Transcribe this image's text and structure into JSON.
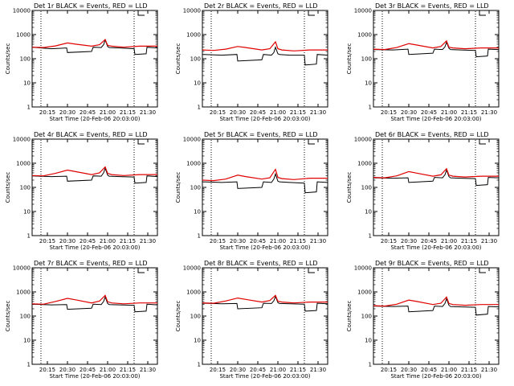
{
  "colors": {
    "events": "#000000",
    "lld": "#e00000",
    "background": "#ffffff"
  },
  "chart_data": [
    {
      "type": "line",
      "title": "Det 1r BLACK = Events, RED = LLD",
      "xlabel": "Start Time (20-Feb-06 20:03:00)",
      "ylabel": "Counts/sec",
      "ylim": [
        1,
        10000
      ],
      "yscale": "log",
      "xlim": [
        20.06,
        21.62
      ],
      "x_ticks": [
        "20:15",
        "20:30",
        "20:45",
        "21:00",
        "21:15",
        "21:30"
      ],
      "y_ticks": [
        "1",
        "10",
        "100",
        "1000",
        "10000"
      ],
      "vlines": [
        20.17,
        21.33
      ],
      "series": [
        {
          "name": "Events",
          "x": [
            20.06,
            20.3,
            20.49,
            20.5,
            20.8,
            20.82,
            20.92,
            20.95,
            20.97,
            21.0,
            21.02,
            21.15,
            21.33,
            21.34,
            21.48,
            21.49,
            21.62
          ],
          "y": [
            300,
            260,
            280,
            180,
            200,
            300,
            290,
            380,
            600,
            320,
            290,
            280,
            260,
            150,
            160,
            300,
            280
          ]
        },
        {
          "name": "LLD",
          "x": [
            20.06,
            20.2,
            20.35,
            20.5,
            20.6,
            20.8,
            20.9,
            20.97,
            21.0,
            21.05,
            21.2,
            21.4,
            21.62
          ],
          "y": [
            300,
            290,
            340,
            450,
            400,
            330,
            380,
            620,
            360,
            330,
            300,
            330,
            330
          ]
        }
      ]
    },
    {
      "type": "line",
      "title": "Det 2r BLACK = Events, RED = LLD",
      "xlabel": "Start Time (20-Feb-06 20:03:00)",
      "ylabel": "Counts/sec",
      "ylim": [
        1,
        10000
      ],
      "yscale": "log",
      "xlim": [
        20.06,
        21.62
      ],
      "x_ticks": [
        "20:15",
        "20:30",
        "20:45",
        "21:00",
        "21:15",
        "21:30"
      ],
      "y_ticks": [
        "1",
        "10",
        "100",
        "1000",
        "10000"
      ],
      "vlines": [
        20.17,
        21.33
      ],
      "series": [
        {
          "name": "Events",
          "x": [
            20.06,
            20.3,
            20.49,
            20.5,
            20.8,
            20.82,
            20.92,
            20.95,
            20.97,
            21.0,
            21.02,
            21.15,
            21.33,
            21.34,
            21.48,
            21.49,
            21.62
          ],
          "y": [
            150,
            140,
            150,
            80,
            90,
            150,
            140,
            180,
            300,
            160,
            150,
            140,
            140,
            55,
            60,
            150,
            140
          ]
        },
        {
          "name": "LLD",
          "x": [
            20.06,
            20.2,
            20.35,
            20.5,
            20.6,
            20.8,
            20.9,
            20.97,
            21.0,
            21.05,
            21.2,
            21.4,
            21.62
          ],
          "y": [
            230,
            220,
            250,
            320,
            290,
            230,
            260,
            500,
            260,
            230,
            210,
            230,
            230
          ]
        }
      ]
    },
    {
      "type": "line",
      "title": "Det 3r BLACK = Events, RED = LLD",
      "xlabel": "Start Time (20-Feb-06 20:03:00)",
      "ylabel": "Counts/sec",
      "ylim": [
        1,
        10000
      ],
      "yscale": "log",
      "xlim": [
        20.06,
        21.62
      ],
      "x_ticks": [
        "20:15",
        "20:30",
        "20:45",
        "21:00",
        "21:15",
        "21:30"
      ],
      "y_ticks": [
        "1",
        "10",
        "100",
        "1000",
        "10000"
      ],
      "vlines": [
        20.17,
        21.33
      ],
      "series": [
        {
          "name": "Events",
          "x": [
            20.06,
            20.3,
            20.49,
            20.5,
            20.8,
            20.82,
            20.92,
            20.95,
            20.97,
            21.0,
            21.02,
            21.15,
            21.33,
            21.34,
            21.48,
            21.49,
            21.62
          ],
          "y": [
            240,
            230,
            250,
            150,
            170,
            250,
            240,
            310,
            480,
            270,
            240,
            230,
            220,
            120,
            130,
            250,
            240
          ]
        },
        {
          "name": "LLD",
          "x": [
            20.06,
            20.2,
            20.35,
            20.5,
            20.6,
            20.8,
            20.9,
            20.97,
            21.0,
            21.05,
            21.2,
            21.4,
            21.62
          ],
          "y": [
            250,
            240,
            290,
            420,
            370,
            280,
            320,
            550,
            300,
            280,
            260,
            280,
            280
          ]
        }
      ]
    },
    {
      "type": "line",
      "title": "Det 4r BLACK = Events, RED = LLD",
      "xlabel": "Start Time (20-Feb-06 20:03:00)",
      "ylabel": "Counts/sec",
      "ylim": [
        1,
        10000
      ],
      "yscale": "log",
      "xlim": [
        20.06,
        21.62
      ],
      "x_ticks": [
        "20:15",
        "20:30",
        "20:45",
        "21:00",
        "21:15",
        "21:30"
      ],
      "y_ticks": [
        "1",
        "10",
        "100",
        "1000",
        "10000"
      ],
      "vlines": [
        20.17,
        21.33
      ],
      "series": [
        {
          "name": "Events",
          "x": [
            20.06,
            20.3,
            20.49,
            20.5,
            20.8,
            20.82,
            20.92,
            20.95,
            20.97,
            21.0,
            21.02,
            21.15,
            21.33,
            21.34,
            21.48,
            21.49,
            21.62
          ],
          "y": [
            300,
            280,
            290,
            180,
            200,
            300,
            290,
            400,
            620,
            320,
            290,
            280,
            270,
            150,
            160,
            300,
            280
          ]
        },
        {
          "name": "LLD",
          "x": [
            20.06,
            20.2,
            20.35,
            20.5,
            20.6,
            20.8,
            20.9,
            20.97,
            21.0,
            21.05,
            21.2,
            21.4,
            21.62
          ],
          "y": [
            310,
            300,
            380,
            520,
            450,
            340,
            400,
            700,
            380,
            340,
            310,
            340,
            340
          ]
        }
      ]
    },
    {
      "type": "line",
      "title": "Det 5r BLACK = Events, RED = LLD",
      "xlabel": "Start Time (20-Feb-06 20:03:00)",
      "ylabel": "Counts/sec",
      "ylim": [
        1,
        10000
      ],
      "yscale": "log",
      "xlim": [
        20.06,
        21.62
      ],
      "x_ticks": [
        "20:15",
        "20:30",
        "20:45",
        "21:00",
        "21:15",
        "21:30"
      ],
      "y_ticks": [
        "1",
        "10",
        "100",
        "1000",
        "10000"
      ],
      "vlines": [
        20.17,
        21.33
      ],
      "series": [
        {
          "name": "Events",
          "x": [
            20.06,
            20.3,
            20.49,
            20.5,
            20.8,
            20.82,
            20.92,
            20.95,
            20.97,
            21.0,
            21.02,
            21.15,
            21.33,
            21.34,
            21.48,
            21.49,
            21.62
          ],
          "y": [
            170,
            160,
            170,
            90,
            100,
            170,
            160,
            220,
            360,
            180,
            170,
            160,
            150,
            60,
            65,
            170,
            160
          ]
        },
        {
          "name": "LLD",
          "x": [
            20.06,
            20.2,
            20.35,
            20.5,
            20.6,
            20.8,
            20.9,
            20.97,
            21.0,
            21.05,
            21.2,
            21.4,
            21.62
          ],
          "y": [
            200,
            190,
            220,
            320,
            280,
            220,
            250,
            560,
            260,
            230,
            210,
            240,
            240
          ]
        }
      ]
    },
    {
      "type": "line",
      "title": "Det 6r BLACK = Events, RED = LLD",
      "xlabel": "Start Time (20-Feb-06 20:03:00)",
      "ylabel": "Counts/sec",
      "ylim": [
        1,
        10000
      ],
      "yscale": "log",
      "xlim": [
        20.06,
        21.62
      ],
      "x_ticks": [
        "20:15",
        "20:30",
        "20:45",
        "21:00",
        "21:15",
        "21:30"
      ],
      "y_ticks": [
        "1",
        "10",
        "100",
        "1000",
        "10000"
      ],
      "vlines": [
        20.17,
        21.33
      ],
      "series": [
        {
          "name": "Events",
          "x": [
            20.06,
            20.3,
            20.49,
            20.5,
            20.8,
            20.82,
            20.92,
            20.95,
            20.97,
            21.0,
            21.02,
            21.15,
            21.33,
            21.34,
            21.48,
            21.49,
            21.62
          ],
          "y": [
            250,
            240,
            250,
            160,
            180,
            260,
            250,
            330,
            520,
            280,
            250,
            240,
            230,
            120,
            130,
            260,
            250
          ]
        },
        {
          "name": "LLD",
          "x": [
            20.06,
            20.2,
            20.35,
            20.5,
            20.6,
            20.8,
            20.9,
            20.97,
            21.0,
            21.05,
            21.2,
            21.4,
            21.62
          ],
          "y": [
            260,
            250,
            300,
            450,
            390,
            290,
            330,
            600,
            320,
            290,
            270,
            290,
            290
          ]
        }
      ]
    },
    {
      "type": "line",
      "title": "Det 7r BLACK = Events, RED = LLD",
      "xlabel": "Start Time (20-Feb-06 20:03:00)",
      "ylabel": "Counts/sec",
      "ylim": [
        1,
        10000
      ],
      "yscale": "log",
      "xlim": [
        20.06,
        21.62
      ],
      "x_ticks": [
        "20:15",
        "20:30",
        "20:45",
        "21:00",
        "21:15",
        "21:30"
      ],
      "y_ticks": [
        "1",
        "10",
        "100",
        "1000",
        "10000"
      ],
      "vlines": [
        20.17,
        21.33
      ],
      "series": [
        {
          "name": "Events",
          "x": [
            20.06,
            20.3,
            20.49,
            20.5,
            20.8,
            20.82,
            20.92,
            20.95,
            20.97,
            21.0,
            21.02,
            21.15,
            21.33,
            21.34,
            21.48,
            21.49,
            21.62
          ],
          "y": [
            310,
            290,
            300,
            190,
            210,
            310,
            300,
            400,
            620,
            330,
            300,
            290,
            280,
            150,
            160,
            310,
            290
          ]
        },
        {
          "name": "LLD",
          "x": [
            20.06,
            20.2,
            20.35,
            20.5,
            20.6,
            20.8,
            20.9,
            20.97,
            21.0,
            21.05,
            21.2,
            21.4,
            21.62
          ],
          "y": [
            320,
            310,
            400,
            540,
            470,
            350,
            420,
            720,
            390,
            350,
            320,
            350,
            350
          ]
        }
      ]
    },
    {
      "type": "line",
      "title": "Det 8r BLACK = Events, RED = LLD",
      "xlabel": "Start Time (20-Feb-06 20:03:00)",
      "ylabel": "Counts/sec",
      "ylim": [
        1,
        10000
      ],
      "yscale": "log",
      "xlim": [
        20.06,
        21.62
      ],
      "x_ticks": [
        "20:15",
        "20:30",
        "20:45",
        "21:00",
        "21:15",
        "21:30"
      ],
      "y_ticks": [
        "1",
        "10",
        "100",
        "1000",
        "10000"
      ],
      "vlines": [
        20.17,
        21.33
      ],
      "series": [
        {
          "name": "Events",
          "x": [
            20.06,
            20.3,
            20.49,
            20.5,
            20.8,
            20.82,
            20.92,
            20.95,
            20.97,
            21.0,
            21.02,
            21.15,
            21.33,
            21.34,
            21.48,
            21.49,
            21.62
          ],
          "y": [
            340,
            320,
            330,
            200,
            220,
            340,
            330,
            430,
            650,
            360,
            330,
            320,
            310,
            160,
            170,
            340,
            320
          ]
        },
        {
          "name": "LLD",
          "x": [
            20.06,
            20.2,
            20.35,
            20.5,
            20.6,
            20.8,
            20.9,
            20.97,
            21.0,
            21.05,
            21.2,
            21.4,
            21.62
          ],
          "y": [
            350,
            340,
            420,
            560,
            490,
            380,
            440,
            720,
            410,
            380,
            350,
            380,
            380
          ]
        }
      ]
    },
    {
      "type": "line",
      "title": "Det 9r BLACK = Events, RED = LLD",
      "xlabel": "Start Time (20-Feb-06 20:03:00)",
      "ylabel": "Counts/sec",
      "ylim": [
        1,
        10000
      ],
      "yscale": "log",
      "xlim": [
        20.06,
        21.62
      ],
      "x_ticks": [
        "20:15",
        "20:30",
        "20:45",
        "21:00",
        "21:15",
        "21:30"
      ],
      "y_ticks": [
        "1",
        "10",
        "100",
        "1000",
        "10000"
      ],
      "vlines": [
        20.17,
        21.33
      ],
      "series": [
        {
          "name": "Events",
          "x": [
            20.06,
            20.3,
            20.49,
            20.5,
            20.8,
            20.82,
            20.92,
            20.95,
            20.97,
            21.0,
            21.02,
            21.15,
            21.33,
            21.34,
            21.48,
            21.49,
            21.62
          ],
          "y": [
            260,
            250,
            260,
            150,
            170,
            260,
            250,
            330,
            520,
            280,
            250,
            240,
            230,
            110,
            120,
            250,
            240
          ]
        },
        {
          "name": "LLD",
          "x": [
            20.06,
            20.2,
            20.35,
            20.5,
            20.6,
            20.8,
            20.9,
            20.97,
            21.0,
            21.05,
            21.2,
            21.4,
            21.62
          ],
          "y": [
            270,
            260,
            310,
            460,
            400,
            300,
            340,
            610,
            330,
            300,
            280,
            300,
            300
          ]
        }
      ]
    }
  ]
}
